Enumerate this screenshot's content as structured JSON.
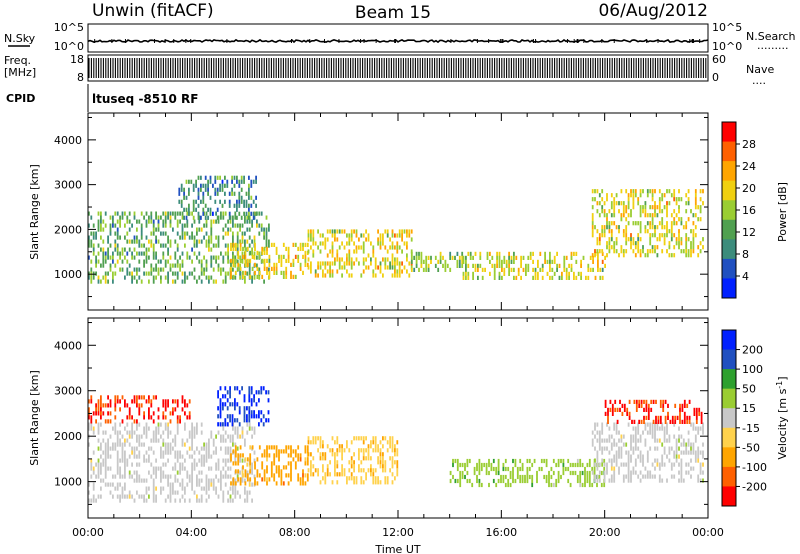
{
  "header": {
    "station": "Unwin (fitACF)",
    "beam": "Beam 15",
    "date": "06/Aug/2012"
  },
  "noise_panel": {
    "left_label": "N.Sky",
    "right_label": "N.Search",
    "left_ticks": [
      "10^5",
      "10^0"
    ],
    "right_ticks": [
      "10^5",
      "10^0"
    ],
    "right_legend_dots": "·········"
  },
  "freq_panel": {
    "left_label_line1": "Freq.",
    "left_label_line2": "[MHz]",
    "right_label": "Nave",
    "left_ticks": [
      "18",
      "8"
    ],
    "right_ticks": [
      "60",
      "0"
    ],
    "right_legend_dots": "····"
  },
  "cpid": {
    "label": "CPID",
    "text": "ltuseq -8510 RF"
  },
  "chart_data": [
    {
      "type": "heatmap",
      "title": "",
      "ylabel": "Slant Range [km]",
      "xlabel": "",
      "xlim": [
        0,
        24
      ],
      "ylim": [
        200,
        4600
      ],
      "x_ticks": [
        0,
        4,
        8,
        12,
        16,
        20,
        24
      ],
      "y_ticks": [
        1000,
        2000,
        3000,
        4000
      ],
      "colorbar": {
        "label": "Power [dB]",
        "ticks": [
          "28",
          "24",
          "20",
          "16",
          "12",
          "8",
          "4"
        ],
        "range": [
          0,
          30
        ],
        "colors": [
          "#0020ff",
          "#2050c0",
          "#3c8c7c",
          "#50a050",
          "#9acd32",
          "#f0d010",
          "#ffa500",
          "#ff6000",
          "#ff0000"
        ]
      },
      "echo_regions": [
        {
          "t_start": 0.0,
          "t_end": 7.0,
          "r_start": 800,
          "r_end": 2400,
          "mean": 12
        },
        {
          "t_start": 3.5,
          "t_end": 6.5,
          "r_start": 2300,
          "r_end": 3200,
          "mean": 9
        },
        {
          "t_start": 5.5,
          "t_end": 8.5,
          "r_start": 900,
          "r_end": 1700,
          "mean": 18
        },
        {
          "t_start": 8.5,
          "t_end": 12.5,
          "r_start": 1000,
          "r_end": 2000,
          "mean": 18
        },
        {
          "t_start": 12.5,
          "t_end": 14.5,
          "r_start": 1100,
          "r_end": 1500,
          "mean": 14
        },
        {
          "t_start": 14.5,
          "t_end": 20.0,
          "r_start": 900,
          "r_end": 1500,
          "mean": 17
        },
        {
          "t_start": 19.5,
          "t_end": 23.8,
          "r_start": 1400,
          "r_end": 2900,
          "mean": 17
        }
      ]
    },
    {
      "type": "heatmap",
      "title": "",
      "ylabel": "Slant Range [km]",
      "xlabel": "Time UT",
      "xlim": [
        0,
        24
      ],
      "ylim": [
        200,
        4600
      ],
      "x_ticks": [
        0,
        4,
        8,
        12,
        16,
        20,
        24
      ],
      "x_tick_labels": [
        "00:00",
        "04:00",
        "08:00",
        "12:00",
        "16:00",
        "20:00",
        "00:00"
      ],
      "y_ticks": [
        1000,
        2000,
        3000,
        4000
      ],
      "colorbar": {
        "label": "Velocity [m s",
        "label_superscript": "-1",
        "label_end": "]",
        "ticks": [
          "200",
          "100",
          "50",
          "15",
          "-15",
          "-50",
          "-100",
          "-200"
        ],
        "range": [
          -250,
          250
        ],
        "colors": [
          "#ff0000",
          "#ff6000",
          "#ffa500",
          "#ffd24c",
          "#c8c8c8",
          "#9acd32",
          "#2ea02e",
          "#2050c0",
          "#0020ff"
        ]
      },
      "echo_regions": [
        {
          "t_start": 0.0,
          "t_end": 6.5,
          "r_start": 600,
          "r_end": 2300,
          "mean": 0
        },
        {
          "t_start": 0.0,
          "t_end": 4.0,
          "r_start": 2300,
          "r_end": 2900,
          "mean": -200
        },
        {
          "t_start": 5.5,
          "t_end": 8.5,
          "r_start": 1000,
          "r_end": 1800,
          "mean": -110
        },
        {
          "t_start": 5.0,
          "t_end": 7.0,
          "r_start": 2300,
          "r_end": 3100,
          "mean": 200
        },
        {
          "t_start": 8.5,
          "t_end": 12.0,
          "r_start": 1000,
          "r_end": 2000,
          "mean": -70
        },
        {
          "t_start": 14.0,
          "t_end": 20.0,
          "r_start": 900,
          "r_end": 1500,
          "mean": 60
        },
        {
          "t_start": 19.5,
          "t_end": 23.8,
          "r_start": 1000,
          "r_end": 2300,
          "mean": 0
        },
        {
          "t_start": 20.0,
          "t_end": 23.8,
          "r_start": 2300,
          "r_end": 2800,
          "mean": -200
        }
      ]
    }
  ]
}
